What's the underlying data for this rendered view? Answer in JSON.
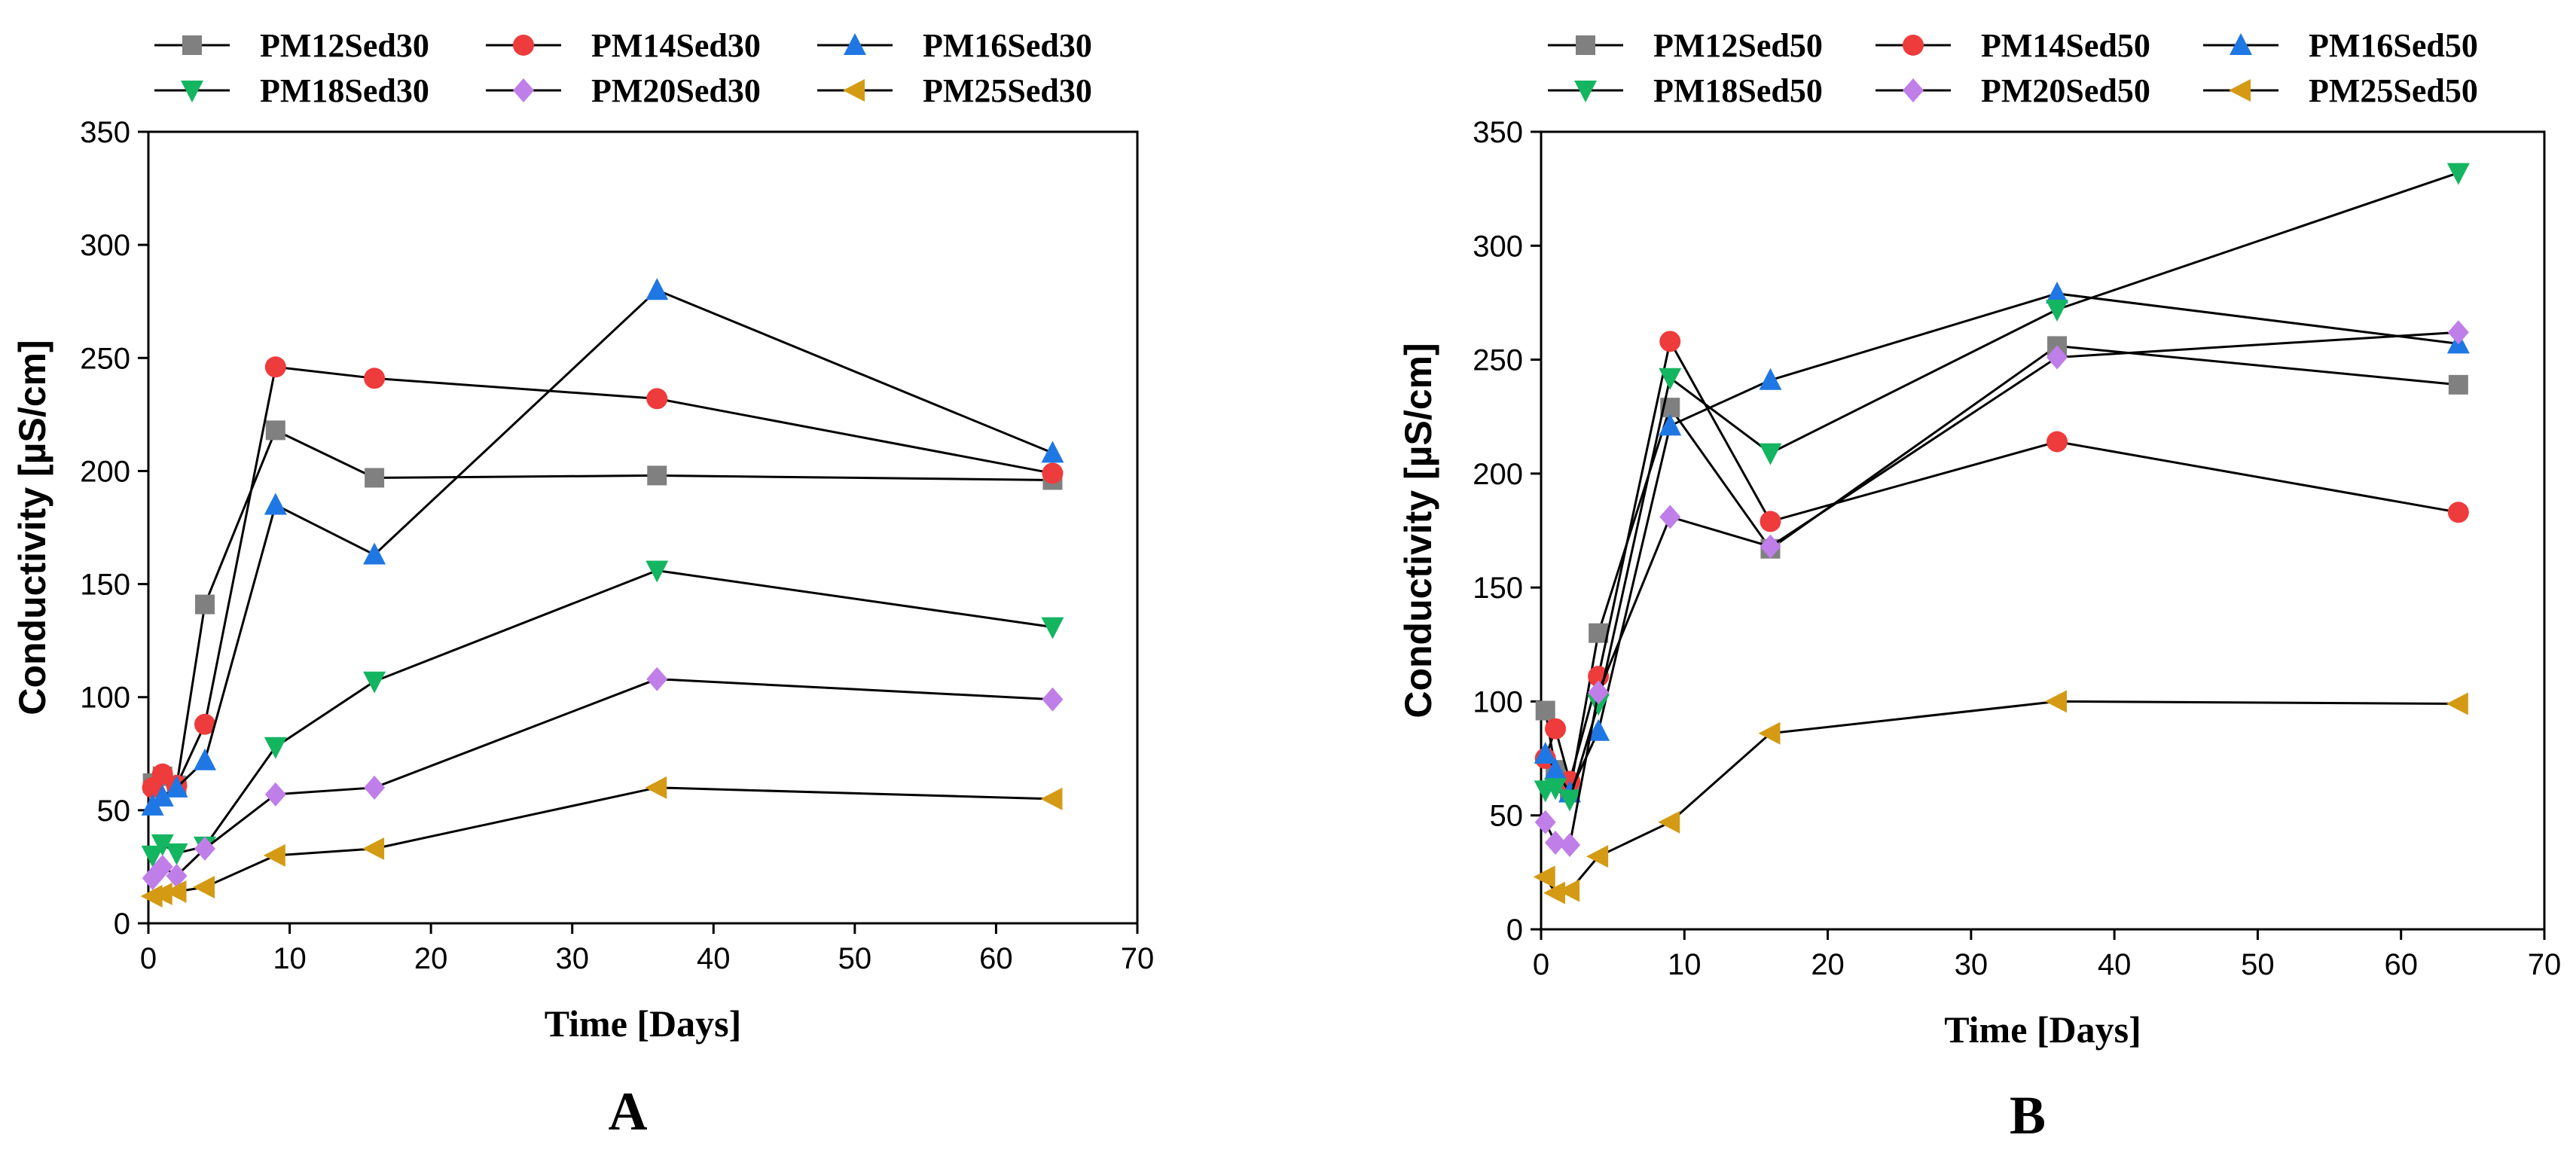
{
  "colors": {
    "PM12": "#808080",
    "PM14": "#ee3b3b",
    "PM16": "#1f77e4",
    "PM18": "#14b560",
    "PM20": "#c07ee8",
    "PM25": "#d49a14"
  },
  "chart_data": [
    {
      "type": "line",
      "panel_label": "A",
      "xlabel": "Time [Days]",
      "ylabel": "Conductivity [µS/cm]",
      "xlim": [
        0,
        70
      ],
      "ylim": [
        0,
        350
      ],
      "xticks": [
        "0",
        "10",
        "20",
        "30",
        "40",
        "50",
        "60",
        "70"
      ],
      "yticks": [
        "0",
        "50",
        "100",
        "150",
        "200",
        "250",
        "300",
        "350"
      ],
      "legend_position": "top",
      "x": [
        0.3,
        1,
        2,
        4,
        9,
        16,
        36,
        64
      ],
      "series": [
        {
          "name": "PM12Sed30",
          "marker": "square",
          "values": [
            62,
            65,
            61,
            141,
            218,
            197,
            198,
            196
          ]
        },
        {
          "name": "PM14Sed30",
          "marker": "circle",
          "values": [
            60,
            66,
            61,
            88,
            246,
            241,
            232,
            199
          ]
        },
        {
          "name": "PM16Sed30",
          "marker": "triangle-up",
          "values": [
            52,
            56,
            60,
            72,
            185,
            163,
            280,
            208
          ]
        },
        {
          "name": "PM18Sed30",
          "marker": "triangle-down",
          "values": [
            30,
            35,
            31,
            34,
            78,
            107,
            156,
            131
          ]
        },
        {
          "name": "PM20Sed30",
          "marker": "diamond",
          "values": [
            20,
            25,
            21,
            33,
            57,
            60,
            108,
            99
          ]
        },
        {
          "name": "PM25Sed30",
          "marker": "triangle-left",
          "values": [
            12,
            13,
            14,
            16,
            30,
            33,
            60,
            55
          ]
        }
      ]
    },
    {
      "type": "line",
      "panel_label": "B",
      "xlabel": "Time [Days]",
      "ylabel": "Conductivity [µS/cm]",
      "xlim": [
        0,
        70
      ],
      "ylim": [
        0,
        350
      ],
      "xticks": [
        "0",
        "10",
        "20",
        "30",
        "40",
        "50",
        "60",
        "70"
      ],
      "yticks": [
        "0",
        "50",
        "100",
        "150",
        "200",
        "250",
        "300",
        "350"
      ],
      "legend_position": "top",
      "x": [
        0.3,
        1,
        2,
        4,
        9,
        16,
        36,
        64
      ],
      "series": [
        {
          "name": "PM12Sed50",
          "marker": "square",
          "values": [
            96,
            70,
            60,
            130,
            229,
            167,
            256,
            239
          ]
        },
        {
          "name": "PM14Sed50",
          "marker": "circle",
          "values": [
            75,
            88,
            65,
            111,
            258,
            179,
            214,
            183
          ]
        },
        {
          "name": "PM16Sed50",
          "marker": "triangle-up",
          "values": [
            77,
            70,
            60,
            87,
            221,
            241,
            279,
            257
          ]
        },
        {
          "name": "PM18Sed50",
          "marker": "triangle-down",
          "values": [
            61,
            62,
            57,
            99,
            242,
            209,
            272,
            332
          ]
        },
        {
          "name": "PM20Sed50",
          "marker": "diamond",
          "values": [
            47,
            38,
            37,
            104,
            181,
            168,
            251,
            262
          ]
        },
        {
          "name": "PM25Sed50",
          "marker": "triangle-left",
          "values": [
            23,
            16,
            17,
            32,
            47,
            86,
            100,
            99
          ]
        }
      ]
    }
  ]
}
